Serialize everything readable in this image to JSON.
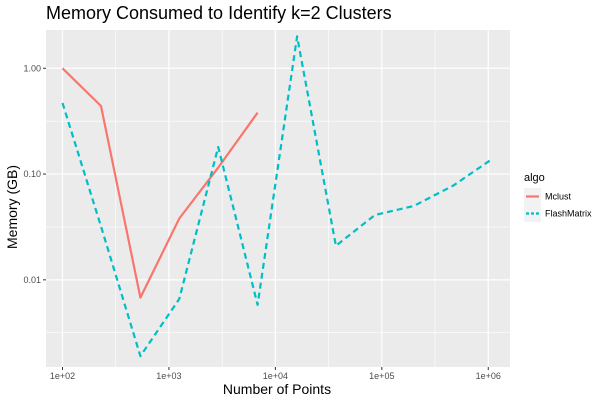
{
  "chart_data": {
    "type": "line",
    "title": "Memory Consumed to Identify k=2 Clusters",
    "xlabel": "Number of Points",
    "ylabel": "Memory (GB)",
    "x_scale": "log10",
    "y_scale": "log10",
    "xlim": [
      70,
      1600000
    ],
    "ylim": [
      0.0015,
      2.3
    ],
    "x_ticks": [
      {
        "value": 100,
        "label": "1e+02"
      },
      {
        "value": 1000,
        "label": "1e+03"
      },
      {
        "value": 10000,
        "label": "1e+04"
      },
      {
        "value": 100000,
        "label": "1e+05"
      },
      {
        "value": 1000000,
        "label": "1e+06"
      }
    ],
    "y_ticks": [
      {
        "value": 0.01,
        "label": "0.01"
      },
      {
        "value": 0.1,
        "label": "0.10"
      },
      {
        "value": 1,
        "label": "1.00"
      }
    ],
    "grid": true,
    "legend": {
      "title": "algo",
      "position": "right"
    },
    "series": [
      {
        "name": "Mclust",
        "color": "#F8766D",
        "linetype": "solid",
        "x": [
          100,
          230,
          540,
          1250,
          2900,
          6800
        ],
        "y": [
          1.0,
          0.44,
          0.0068,
          0.038,
          0.115,
          0.38
        ]
      },
      {
        "name": "FlashMatrix",
        "color": "#00BFC4",
        "linetype": "dashed",
        "x": [
          100,
          230,
          540,
          1250,
          2900,
          6800,
          16000,
          37000,
          86000,
          200000,
          470000,
          1100000
        ],
        "y": [
          0.47,
          0.032,
          0.0019,
          0.0066,
          0.18,
          0.0058,
          2.0,
          0.021,
          0.041,
          0.05,
          0.078,
          0.14
        ]
      }
    ]
  }
}
